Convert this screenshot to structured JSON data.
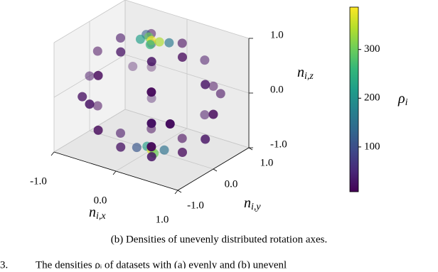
{
  "chart_data": {
    "type": "scatter3d",
    "caption": "(b) Densities of unevenly distributed rotation axes.",
    "figure_caption_prefix": "3.",
    "figure_caption": "The densities ρᵢ of datasets with (a) evenly and (b) unevenl",
    "xlabel": {
      "base": "n",
      "sub": "i,x"
    },
    "ylabel": {
      "base": "n",
      "sub": "i,y"
    },
    "zlabel": {
      "base": "n",
      "sub": "i,z"
    },
    "colorbar_label": {
      "base": "ρ",
      "sub": "i"
    },
    "colormap": "viridis",
    "xlim": [
      -1,
      1
    ],
    "ylim": [
      -1,
      1
    ],
    "zlim": [
      -1,
      1
    ],
    "xticks": [
      {
        "value": -1,
        "label": "-1.0"
      },
      {
        "value": 0,
        "label": "0.0"
      },
      {
        "value": 1,
        "label": "1.0"
      }
    ],
    "yticks": [
      {
        "value": -1,
        "label": "-1.0"
      },
      {
        "value": 0,
        "label": "0.0"
      },
      {
        "value": 1,
        "label": "1.0"
      }
    ],
    "zticks": [
      {
        "value": -1,
        "label": "-1.0"
      },
      {
        "value": 0,
        "label": "0.0"
      },
      {
        "value": 1,
        "label": "1.0"
      }
    ],
    "clim": [
      8,
      387
    ],
    "cticks": [
      100,
      200,
      300
    ],
    "grid": true,
    "x": [
      0,
      0.1,
      -0.1,
      0.05,
      -0.15,
      0.2,
      -0.2,
      0,
      0.1,
      -0.1,
      0.15,
      -0.18,
      0.5,
      0.87,
      1,
      0.87,
      0.5,
      -0.5,
      -0.87,
      -1,
      -0.87,
      -0.5,
      0.25,
      0.43,
      0.5,
      0.43,
      0.25,
      -0.25,
      -0.43,
      -0.5,
      -0.43,
      -0.25,
      -0.25,
      -0.43,
      -0.5,
      -0.43,
      -0.25,
      0.25,
      0.43,
      0.5,
      0.43,
      0.25,
      0.71,
      -0.71,
      0.71,
      -0.71
    ],
    "y": [
      0,
      0.05,
      0.1,
      -0.12,
      -0.05,
      0.15,
      0.2,
      0,
      -0.1,
      0.05,
      0.1,
      -0.1,
      0,
      0,
      0,
      0,
      0,
      0,
      0,
      0,
      0,
      0,
      0.43,
      0.75,
      0.87,
      0.75,
      0.43,
      -0.43,
      -0.75,
      -0.87,
      -0.75,
      -0.43,
      0.43,
      0.75,
      0.87,
      0.75,
      0.43,
      -0.43,
      -0.75,
      -0.87,
      -0.75,
      -0.43,
      0.71,
      -0.71,
      -0.71,
      0.71
    ],
    "z": [
      1,
      0.99,
      0.99,
      0.99,
      0.99,
      0.97,
      0.96,
      -1,
      -0.99,
      -0.99,
      -0.99,
      -0.98,
      0.87,
      0.5,
      0,
      -0.5,
      -0.87,
      0.87,
      0.5,
      0,
      -0.5,
      -0.87,
      0.87,
      0.5,
      0,
      -0.5,
      -0.87,
      0.87,
      0.5,
      0,
      -0.5,
      -0.87,
      0.87,
      0.5,
      0,
      -0.5,
      -0.87,
      0.87,
      0.5,
      0,
      -0.5,
      -0.87,
      0,
      0,
      0,
      0
    ],
    "values": [
      380,
      340,
      300,
      260,
      220,
      160,
      120,
      370,
      300,
      220,
      150,
      110,
      15,
      25,
      15,
      25,
      15,
      25,
      15,
      25,
      15,
      25,
      15,
      25,
      15,
      25,
      15,
      25,
      15,
      25,
      15,
      25,
      15,
      25,
      15,
      25,
      15,
      25,
      15,
      25,
      15,
      25,
      20,
      20,
      20,
      20
    ]
  }
}
